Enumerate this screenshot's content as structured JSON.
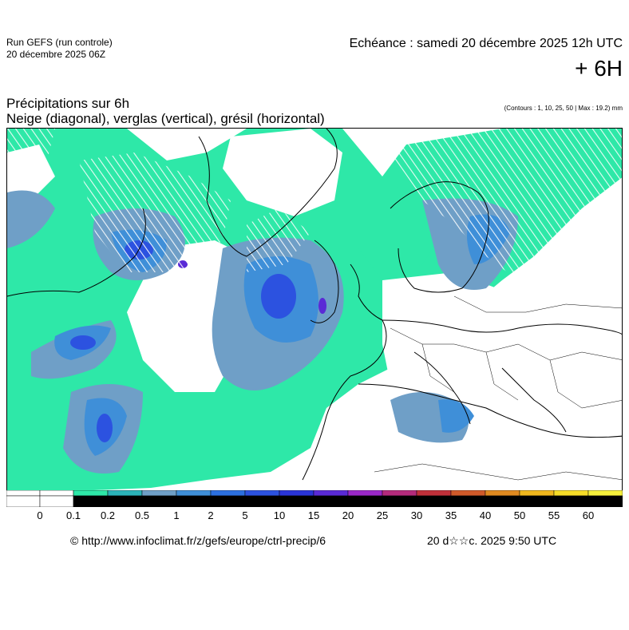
{
  "header": {
    "run_label": "Run GEFS (run controle)",
    "run_date": "20 décembre 2025 06Z",
    "echeance": "Echéance : samedi 20 décembre 2025 12h UTC",
    "lead": "+ 6H"
  },
  "titles": {
    "line1": "Précipitations sur 6h",
    "line2": "Neige (diagonal), verglas (vertical), grésil (horizontal)",
    "contours": "(Contours : 1, 10, 25, 50 | Max : 19.2) mm"
  },
  "map": {
    "region": "europe",
    "precip_max_mm": 19.2,
    "contour_levels_mm": [
      1,
      10,
      25,
      50
    ],
    "land_color": "#ffffff",
    "border_color": "#000000"
  },
  "legend": {
    "labels": [
      "0",
      "0.1",
      "0.2",
      "0.5",
      "1",
      "2",
      "5",
      "10",
      "15",
      "20",
      "25",
      "30",
      "35",
      "40",
      "50",
      "55",
      "60"
    ],
    "colors": [
      "#ffffff",
      "#ffffff",
      "#2ee8a8",
      "#2bb3b9",
      "#6f9fc7",
      "#3f8fd8",
      "#2c70e0",
      "#2c52e0",
      "#2a34d8",
      "#5a2ad6",
      "#9a28c8",
      "#b42b7c",
      "#c0303a",
      "#d05a2a",
      "#e08a20",
      "#f0b81e",
      "#f6dc28",
      "#f6f03c"
    ]
  },
  "footer": {
    "url": "© http://www.infoclimat.fr/z/gefs/europe/ctrl-precip/6",
    "generated": "20 d☆☆c. 2025  9:50 UTC"
  }
}
